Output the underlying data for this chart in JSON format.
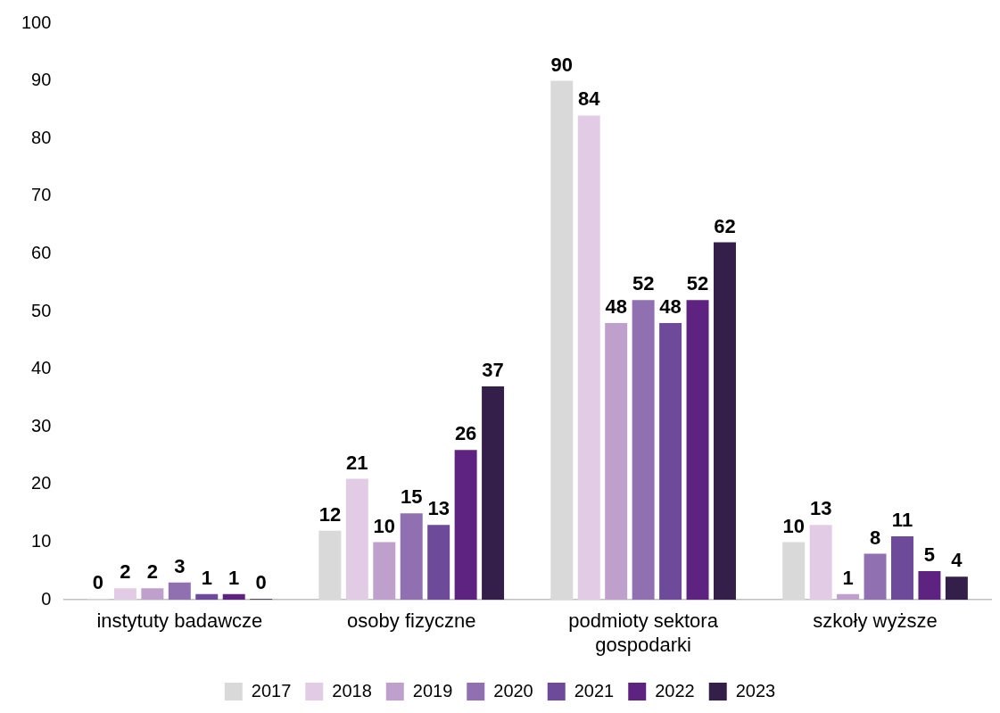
{
  "chart_data": {
    "type": "bar",
    "categories": [
      "instytuty badawcze",
      "osoby fizyczne",
      "podmioty sektora gospodarki",
      "szkoły wyższe"
    ],
    "series": [
      {
        "name": "2017",
        "color": "#d9d9d9",
        "values": [
          0,
          12,
          90,
          10
        ]
      },
      {
        "name": "2018",
        "color": "#e2cce5",
        "values": [
          2,
          21,
          84,
          13
        ]
      },
      {
        "name": "2019",
        "color": "#bf9fcc",
        "values": [
          2,
          10,
          48,
          1
        ]
      },
      {
        "name": "2020",
        "color": "#9070b0",
        "values": [
          3,
          15,
          52,
          8
        ]
      },
      {
        "name": "2021",
        "color": "#6e4a9a",
        "values": [
          1,
          13,
          48,
          11
        ]
      },
      {
        "name": "2022",
        "color": "#5e2281",
        "values": [
          1,
          26,
          52,
          5
        ]
      },
      {
        "name": "2023",
        "color": "#331f4a",
        "values": [
          0,
          37,
          62,
          4
        ]
      }
    ],
    "ylim": [
      0,
      100
    ],
    "yticks": [
      0,
      10,
      20,
      30,
      40,
      50,
      60,
      70,
      80,
      90,
      100
    ],
    "grid": false,
    "legend": "bottom",
    "data_labels": true
  }
}
